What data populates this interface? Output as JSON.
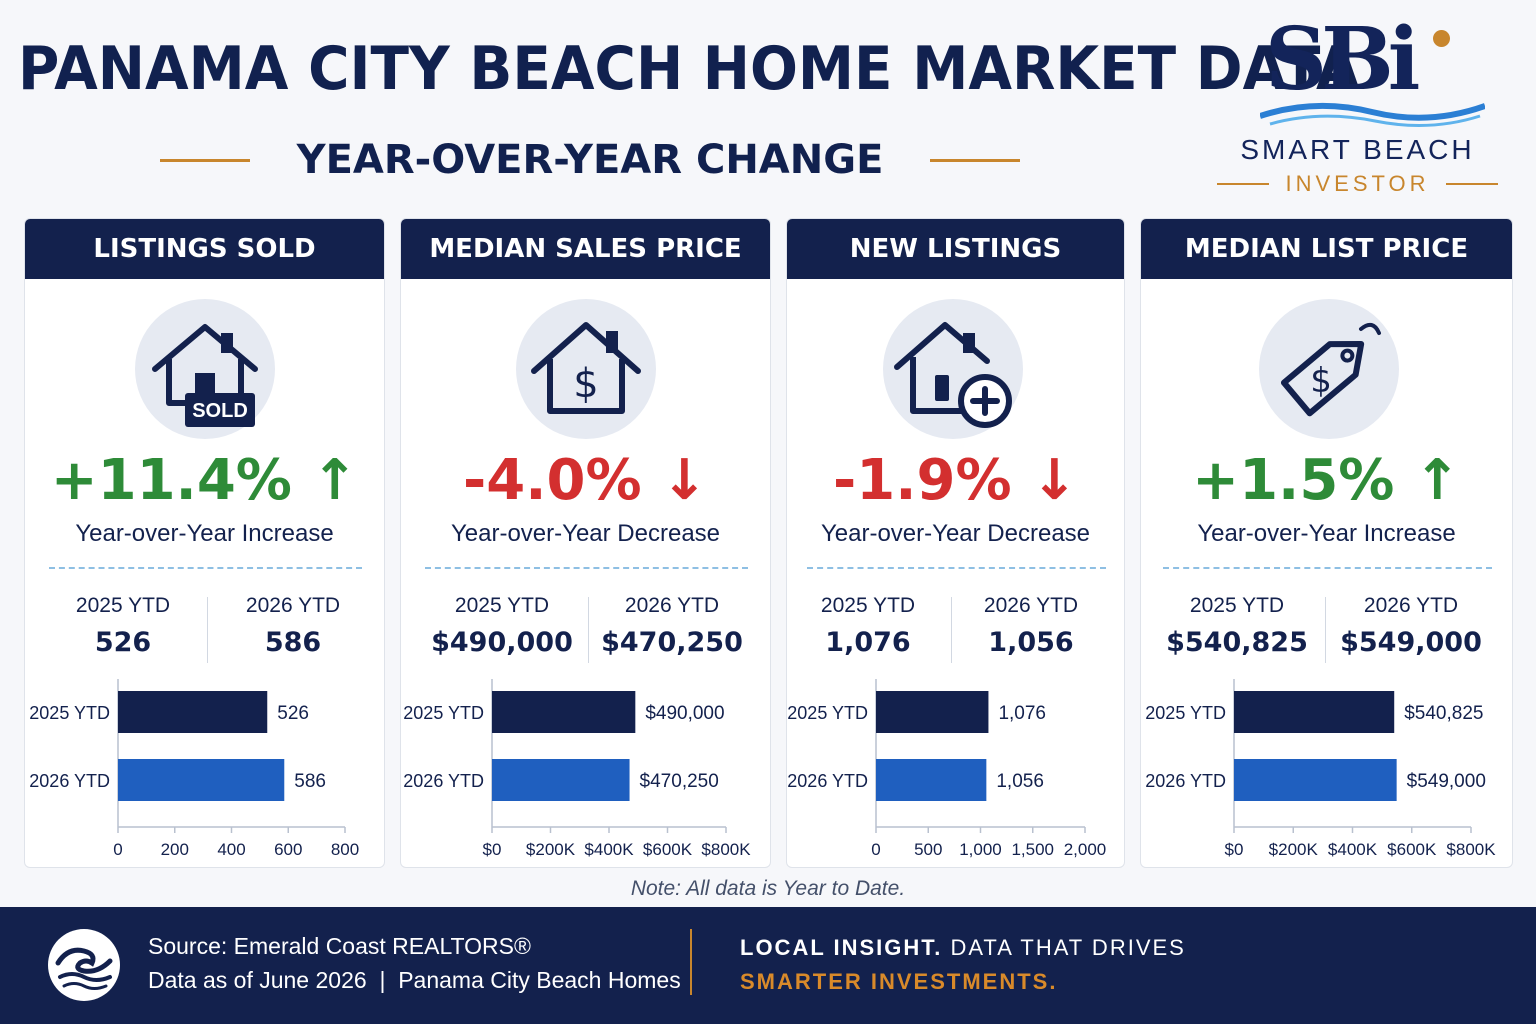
{
  "header": {
    "title": "PANAMA CITY BEACH HOME MARKET DATA",
    "subtitle": "YEAR-OVER-YEAR CHANGE"
  },
  "logo": {
    "letters": "SBi",
    "name": "SMART BEACH",
    "tagline": "INVESTOR"
  },
  "colors": {
    "navy": "#13214d",
    "blue": "#1f5fbf",
    "green": "#2e8b38",
    "red": "#d32f2f",
    "gold": "#c8862d"
  },
  "cards": [
    {
      "title": "LISTINGS SOLD",
      "icon": "house-sold-icon",
      "icon_text": "SOLD",
      "change": "+11.4% ↑",
      "direction": "up",
      "change_label": "Year-over-Year Increase",
      "ytd": [
        {
          "label": "2025 YTD",
          "value": "526"
        },
        {
          "label": "2026 YTD",
          "value": "586"
        }
      ]
    },
    {
      "title": "MEDIAN SALES PRICE",
      "icon": "house-dollar-icon",
      "change": "-4.0% ↓",
      "direction": "down",
      "change_label": "Year-over-Year Decrease",
      "ytd": [
        {
          "label": "2025 YTD",
          "value": "$490,000"
        },
        {
          "label": "2026 YTD",
          "value": "$470,250"
        }
      ]
    },
    {
      "title": "NEW LISTINGS",
      "icon": "house-plus-icon",
      "change": "-1.9% ↓",
      "direction": "down",
      "change_label": "Year-over-Year Decrease",
      "ytd": [
        {
          "label": "2025 YTD",
          "value": "1,076"
        },
        {
          "label": "2026 YTD",
          "value": "1,056"
        }
      ]
    },
    {
      "title": "MEDIAN LIST PRICE",
      "icon": "price-tag-dollar-icon",
      "change": "+1.5% ↑",
      "direction": "up",
      "change_label": "Year-over-Year Increase",
      "ytd": [
        {
          "label": "2025 YTD",
          "value": "$540,825"
        },
        {
          "label": "2026 YTD",
          "value": "$549,000"
        }
      ]
    }
  ],
  "chart_data": [
    {
      "type": "bar",
      "orientation": "horizontal",
      "categories": [
        "2025 YTD",
        "2026 YTD"
      ],
      "values": [
        526,
        586
      ],
      "data_labels": [
        "526",
        "586"
      ],
      "xlim": [
        0,
        800
      ],
      "x_ticks": [
        0,
        200,
        400,
        600,
        800
      ],
      "x_tick_labels": [
        "0",
        "200",
        "400",
        "600",
        "800"
      ],
      "colors": [
        "#13214d",
        "#1f5fbf"
      ]
    },
    {
      "type": "bar",
      "orientation": "horizontal",
      "categories": [
        "2025 YTD",
        "2026 YTD"
      ],
      "values": [
        490000,
        470250
      ],
      "data_labels": [
        "$490,000",
        "$470,250"
      ],
      "xlim": [
        0,
        800000
      ],
      "x_ticks": [
        0,
        200000,
        400000,
        600000,
        800000
      ],
      "x_tick_labels": [
        "$0",
        "$200K",
        "$400K",
        "$600K",
        "$800K"
      ],
      "colors": [
        "#13214d",
        "#1f5fbf"
      ]
    },
    {
      "type": "bar",
      "orientation": "horizontal",
      "categories": [
        "2025 YTD",
        "2026 YTD"
      ],
      "values": [
        1076,
        1056
      ],
      "data_labels": [
        "1,076",
        "1,056"
      ],
      "xlim": [
        0,
        2000
      ],
      "x_ticks": [
        0,
        500,
        1000,
        1500,
        2000
      ],
      "x_tick_labels": [
        "0",
        "500",
        "1,000",
        "1,500",
        "2,000"
      ],
      "colors": [
        "#13214d",
        "#1f5fbf"
      ]
    },
    {
      "type": "bar",
      "orientation": "horizontal",
      "categories": [
        "2025 YTD",
        "2026 YTD"
      ],
      "values": [
        540825,
        549000
      ],
      "data_labels": [
        "$540,825",
        "$549,000"
      ],
      "xlim": [
        0,
        800000
      ],
      "x_ticks": [
        0,
        200000,
        400000,
        600000,
        800000
      ],
      "x_tick_labels": [
        "$0",
        "$200K",
        "$400K",
        "$600K",
        "$800K"
      ],
      "colors": [
        "#13214d",
        "#1f5fbf"
      ]
    }
  ],
  "note": "Note: All data is Year to Date.",
  "footer": {
    "source": "Source: Emerald Coast REALTORS®",
    "data_as_of": "Data as of June 2026  |  Panama City Beach Homes",
    "tag_bold": "LOCAL INSIGHT.",
    "tag_rest": " DATA THAT DRIVES",
    "tag_line2": "SMARTER INVESTMENTS."
  }
}
